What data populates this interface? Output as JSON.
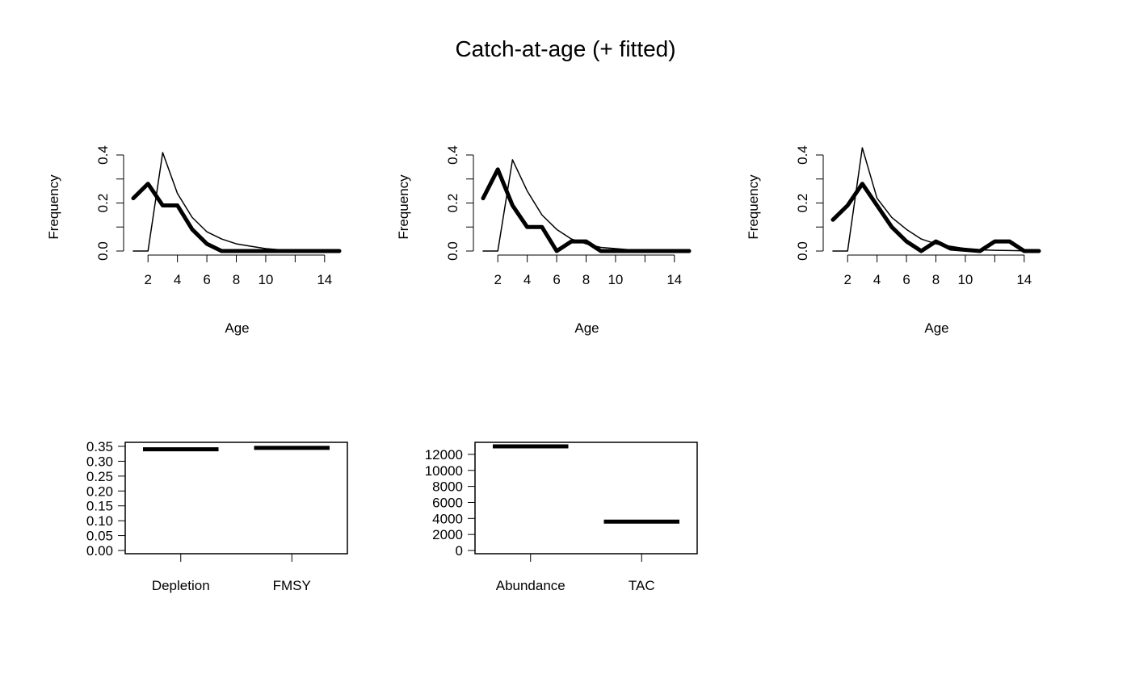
{
  "title": "Catch-at-age (+ fitted)",
  "chart_data": [
    {
      "type": "line",
      "xlabel": "Age",
      "ylabel": "Frequency",
      "x": [
        1,
        2,
        3,
        4,
        5,
        6,
        7,
        8,
        9,
        10,
        11,
        12,
        13,
        14,
        15
      ],
      "xlim": [
        1,
        15
      ],
      "ylim": [
        0,
        0.4
      ],
      "xticks": [
        2,
        4,
        6,
        8,
        10,
        14
      ],
      "yticks": [
        0.0,
        0.1,
        0.2,
        0.3,
        0.4
      ],
      "ytick_labels": [
        "0.0",
        "",
        "0.2",
        "",
        "0.4"
      ],
      "series": [
        {
          "values": [
            0.22,
            0.28,
            0.19,
            0.19,
            0.09,
            0.03,
            0.0,
            0.0,
            0.0,
            0.0,
            0.0,
            0.0,
            0.0,
            0.0,
            0.0
          ]
        },
        {
          "values": [
            0.0,
            0.0,
            0.41,
            0.24,
            0.14,
            0.08,
            0.05,
            0.03,
            0.02,
            0.01,
            0.005,
            0.003,
            0.002,
            0.001,
            0.0
          ]
        }
      ]
    },
    {
      "type": "line",
      "xlabel": "Age",
      "ylabel": "Frequency",
      "x": [
        1,
        2,
        3,
        4,
        5,
        6,
        7,
        8,
        9,
        10,
        11,
        12,
        13,
        14,
        15
      ],
      "xlim": [
        1,
        15
      ],
      "ylim": [
        0,
        0.4
      ],
      "xticks": [
        2,
        4,
        6,
        8,
        10,
        14
      ],
      "yticks": [
        0.0,
        0.1,
        0.2,
        0.3,
        0.4
      ],
      "ytick_labels": [
        "0.0",
        "",
        "0.2",
        "",
        "0.4"
      ],
      "series": [
        {
          "values": [
            0.22,
            0.34,
            0.19,
            0.1,
            0.1,
            0.0,
            0.04,
            0.04,
            0.0,
            0.0,
            0.0,
            0.0,
            0.0,
            0.0,
            0.0
          ]
        },
        {
          "values": [
            0.0,
            0.0,
            0.38,
            0.25,
            0.15,
            0.09,
            0.05,
            0.03,
            0.015,
            0.01,
            0.005,
            0.003,
            0.002,
            0.001,
            0.0
          ]
        }
      ]
    },
    {
      "type": "line",
      "xlabel": "Age",
      "ylabel": "Frequency",
      "x": [
        1,
        2,
        3,
        4,
        5,
        6,
        7,
        8,
        9,
        10,
        11,
        12,
        13,
        14,
        15
      ],
      "xlim": [
        1,
        15
      ],
      "ylim": [
        0,
        0.4
      ],
      "xticks": [
        2,
        4,
        6,
        8,
        10,
        14
      ],
      "yticks": [
        0.0,
        0.1,
        0.2,
        0.3,
        0.4
      ],
      "ytick_labels": [
        "0.0",
        "",
        "0.2",
        "",
        "0.4"
      ],
      "series": [
        {
          "values": [
            0.13,
            0.19,
            0.28,
            0.19,
            0.1,
            0.04,
            0.0,
            0.04,
            0.01,
            0.005,
            0.0,
            0.04,
            0.04,
            0.0,
            0.0
          ]
        },
        {
          "values": [
            0.0,
            0.0,
            0.43,
            0.22,
            0.14,
            0.09,
            0.05,
            0.03,
            0.02,
            0.01,
            0.005,
            0.003,
            0.002,
            0.001,
            0.0
          ]
        }
      ]
    },
    {
      "type": "bar",
      "categories": [
        "Depletion",
        "FMSY"
      ],
      "values": [
        0.34,
        0.345
      ],
      "ylim": [
        0,
        0.35
      ],
      "yticks": [
        0.0,
        0.05,
        0.1,
        0.15,
        0.2,
        0.25,
        0.3,
        0.35
      ],
      "ytick_labels": [
        "0.00",
        "0.05",
        "0.10",
        "0.15",
        "0.20",
        "0.25",
        "0.30",
        "0.35"
      ]
    },
    {
      "type": "bar",
      "categories": [
        "Abundance",
        "TAC"
      ],
      "values": [
        13000,
        3600
      ],
      "ylim": [
        0,
        13000
      ],
      "yticks": [
        0,
        2000,
        4000,
        6000,
        8000,
        10000,
        12000
      ],
      "ytick_labels": [
        "0",
        "2000",
        "4000",
        "6000",
        "8000",
        "10000",
        "12000"
      ]
    }
  ]
}
